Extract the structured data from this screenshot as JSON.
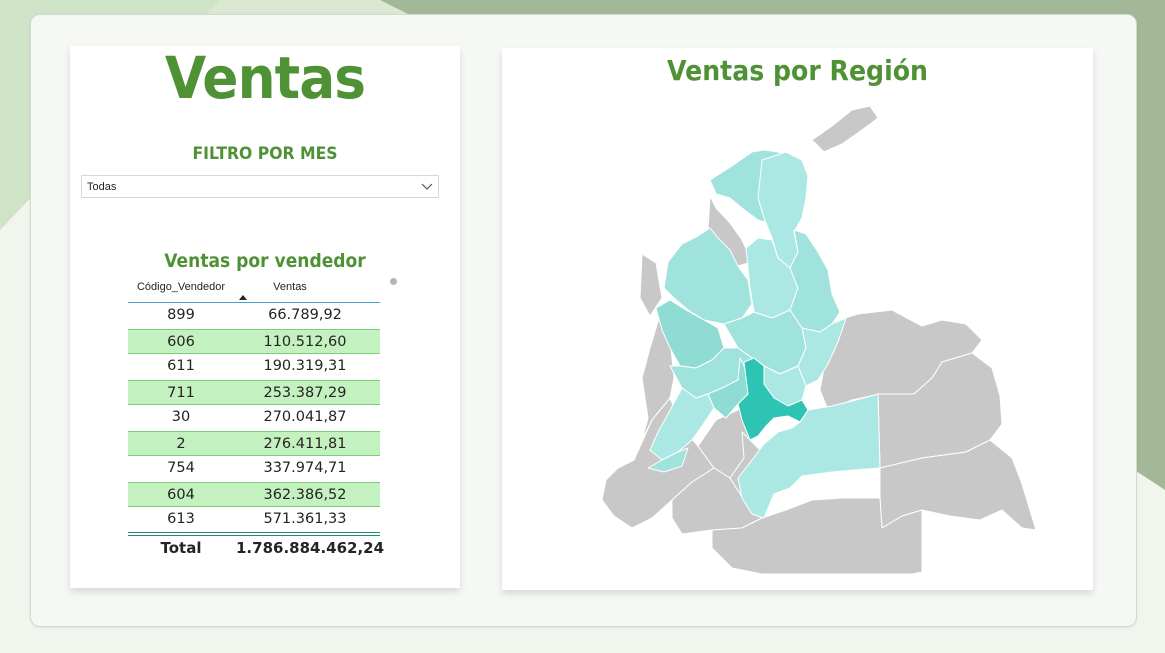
{
  "report": {
    "title": "Ventas",
    "filter": {
      "label": "FILTRO POR MES",
      "selected": "Todas"
    },
    "table": {
      "title": "Ventas por vendedor",
      "columns": [
        "Código_Vendedor",
        "Ventas"
      ],
      "sort_column": "Código_Vendedor",
      "rows": [
        {
          "code": "899",
          "sales": "66.789,92"
        },
        {
          "code": "606",
          "sales": "110.512,60"
        },
        {
          "code": "611",
          "sales": "190.319,31"
        },
        {
          "code": "711",
          "sales": "253.387,29"
        },
        {
          "code": "30",
          "sales": "270.041,87"
        },
        {
          "code": "2",
          "sales": "276.411,81"
        },
        {
          "code": "754",
          "sales": "337.974,71"
        },
        {
          "code": "604",
          "sales": "362.386,52"
        },
        {
          "code": "613",
          "sales": "571.361,33"
        }
      ],
      "total_label": "Total",
      "total_value": "1.786.884.462,24"
    },
    "map": {
      "title": "Ventas por Región"
    }
  },
  "colors": {
    "accent_green": "#4f9235",
    "row_highlight": "#c3f2c0",
    "map_low": "#abe8e4",
    "map_mid": "#8fdcd4",
    "map_high": "#2ec4b4",
    "map_nodata": "#c8c8c8"
  }
}
